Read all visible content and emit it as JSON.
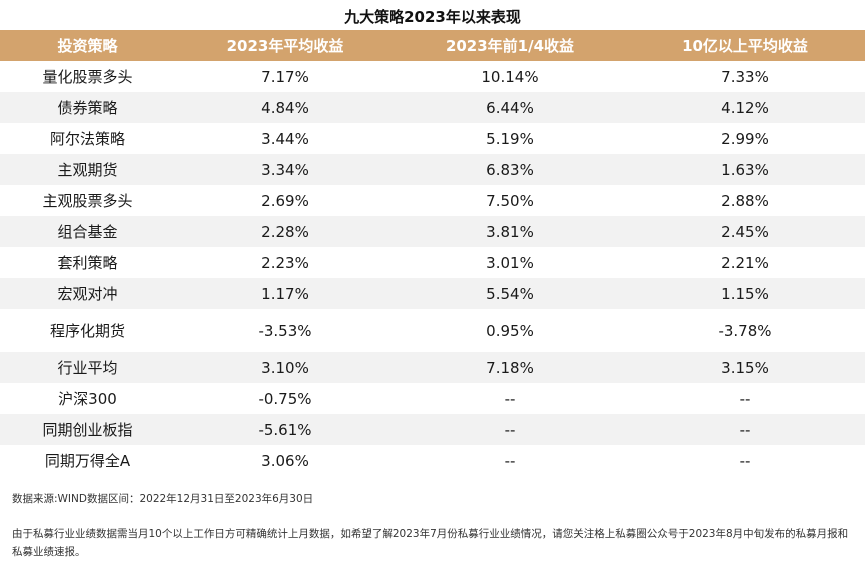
{
  "title": "九大策略2023年以来表现",
  "headers": [
    "投资策略",
    "2023年平均收益",
    "2023年前1/4收益",
    "10亿以上平均收益"
  ],
  "rows": [
    {
      "name": "量化股票多头",
      "v1": "7.17%",
      "v2": "10.14%",
      "v3": "7.33%"
    },
    {
      "name": "债券策略",
      "v1": "4.84%",
      "v2": "6.44%",
      "v3": "4.12%"
    },
    {
      "name": "阿尔法策略",
      "v1": "3.44%",
      "v2": "5.19%",
      "v3": "2.99%"
    },
    {
      "name": "主观期货",
      "v1": "3.34%",
      "v2": "6.83%",
      "v3": "1.63%"
    },
    {
      "name": "主观股票多头",
      "v1": "2.69%",
      "v2": "7.50%",
      "v3": "2.88%"
    },
    {
      "name": "组合基金",
      "v1": "2.28%",
      "v2": "3.81%",
      "v3": "2.45%"
    },
    {
      "name": "套利策略",
      "v1": "2.23%",
      "v2": "3.01%",
      "v3": "2.21%"
    },
    {
      "name": "宏观对冲",
      "v1": "1.17%",
      "v2": "5.54%",
      "v3": "1.15%"
    },
    {
      "name": "程序化期货",
      "v1": "-3.53%",
      "v2": "0.95%",
      "v3": "-3.78%"
    },
    {
      "name": "行业平均",
      "v1": "3.10%",
      "v2": "7.18%",
      "v3": "3.15%"
    },
    {
      "name": "沪深300",
      "v1": "-0.75%",
      "v2": "--",
      "v3": "--"
    },
    {
      "name": "同期创业板指",
      "v1": "-5.61%",
      "v2": "--",
      "v3": "--"
    },
    {
      "name": "同期万得全A",
      "v1": "3.06%",
      "v2": "--",
      "v3": "--"
    }
  ],
  "source_note": "数据来源:WIND数据区间：2022年12月31日至2023年6月30日",
  "footnote": "由于私募行业业绩数据需当月10个以上工作日方可精确统计上月数据，如希望了解2023年7月份私募行业业绩情况，请您关注格上私募圈公众号于2023年8月中旬发布的私募月报和私募业绩速报。"
}
